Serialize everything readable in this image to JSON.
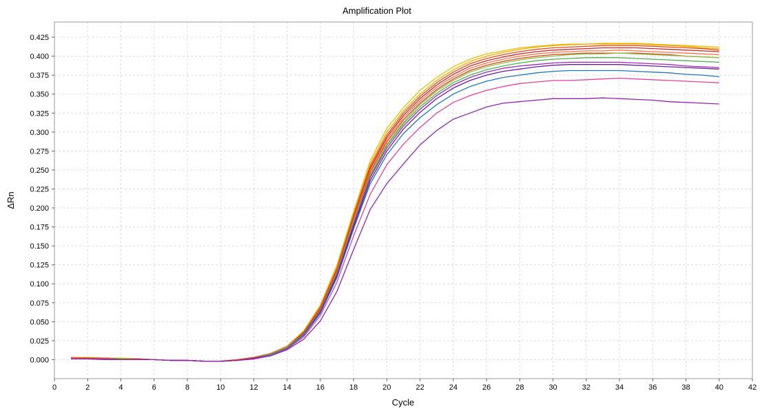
{
  "chart_data": {
    "type": "line",
    "title": "Amplification Plot",
    "xlabel": "Cycle",
    "ylabel": "ΔRn",
    "xlim": [
      0,
      42
    ],
    "ylim": [
      -0.025,
      0.445
    ],
    "x_ticks": [
      0,
      2,
      4,
      6,
      8,
      10,
      12,
      14,
      16,
      18,
      20,
      22,
      24,
      26,
      28,
      30,
      32,
      34,
      36,
      38,
      40,
      42
    ],
    "y_ticks": [
      0.0,
      0.025,
      0.05,
      0.075,
      0.1,
      0.125,
      0.15,
      0.175,
      0.2,
      0.225,
      0.25,
      0.275,
      0.3,
      0.325,
      0.35,
      0.375,
      0.4,
      0.425
    ],
    "grid": true,
    "legend": "none",
    "x": [
      1,
      2,
      3,
      4,
      5,
      6,
      7,
      8,
      9,
      10,
      11,
      12,
      13,
      14,
      15,
      16,
      17,
      18,
      19,
      20,
      21,
      22,
      23,
      24,
      25,
      26,
      27,
      28,
      29,
      30,
      31,
      32,
      33,
      34,
      35,
      36,
      37,
      38,
      39,
      40
    ],
    "series": [
      {
        "color": "#e6c200",
        "values": [
          0.003,
          0.003,
          0.002,
          0.002,
          0.001,
          0.0,
          -0.001,
          -0.001,
          -0.002,
          -0.002,
          0.0,
          0.003,
          0.008,
          0.018,
          0.038,
          0.072,
          0.125,
          0.195,
          0.262,
          0.305,
          0.332,
          0.355,
          0.372,
          0.386,
          0.396,
          0.403,
          0.407,
          0.411,
          0.413,
          0.415,
          0.416,
          0.416,
          0.417,
          0.417,
          0.417,
          0.416,
          0.415,
          0.414,
          0.413,
          0.412
        ]
      },
      {
        "color": "#f2a900",
        "values": [
          0.002,
          0.003,
          0.002,
          0.001,
          0.001,
          0.0,
          -0.001,
          -0.001,
          -0.002,
          -0.002,
          0.0,
          0.003,
          0.008,
          0.018,
          0.037,
          0.07,
          0.122,
          0.192,
          0.258,
          0.3,
          0.328,
          0.35,
          0.368,
          0.382,
          0.393,
          0.4,
          0.405,
          0.409,
          0.412,
          0.414,
          0.415,
          0.416,
          0.416,
          0.416,
          0.416,
          0.415,
          0.414,
          0.413,
          0.411,
          0.41
        ]
      },
      {
        "color": "#e64a19",
        "values": [
          0.003,
          0.002,
          0.002,
          0.001,
          0.001,
          0.0,
          -0.001,
          -0.001,
          -0.002,
          -0.002,
          0.0,
          0.003,
          0.008,
          0.017,
          0.036,
          0.069,
          0.12,
          0.19,
          0.255,
          0.296,
          0.325,
          0.347,
          0.365,
          0.379,
          0.39,
          0.397,
          0.402,
          0.406,
          0.409,
          0.411,
          0.412,
          0.413,
          0.414,
          0.414,
          0.414,
          0.413,
          0.412,
          0.411,
          0.41,
          0.408
        ]
      },
      {
        "color": "#c62828",
        "values": [
          0.002,
          0.002,
          0.002,
          0.001,
          0.001,
          0.0,
          -0.001,
          -0.001,
          -0.002,
          -0.002,
          -0.001,
          0.002,
          0.007,
          0.017,
          0.036,
          0.068,
          0.118,
          0.188,
          0.252,
          0.293,
          0.322,
          0.344,
          0.362,
          0.376,
          0.387,
          0.394,
          0.399,
          0.403,
          0.406,
          0.408,
          0.409,
          0.41,
          0.411,
          0.411,
          0.411,
          0.41,
          0.409,
          0.408,
          0.407,
          0.406
        ]
      },
      {
        "color": "#ff7043",
        "values": [
          0.002,
          0.002,
          0.001,
          0.001,
          0.0,
          0.0,
          -0.001,
          -0.001,
          -0.002,
          -0.002,
          -0.001,
          0.002,
          0.007,
          0.017,
          0.035,
          0.067,
          0.117,
          0.186,
          0.25,
          0.29,
          0.319,
          0.341,
          0.359,
          0.373,
          0.384,
          0.391,
          0.396,
          0.4,
          0.403,
          0.405,
          0.406,
          0.407,
          0.407,
          0.408,
          0.407,
          0.406,
          0.405,
          0.404,
          0.403,
          0.402
        ]
      },
      {
        "color": "#d84315",
        "values": [
          0.001,
          0.002,
          0.002,
          0.001,
          0.001,
          0.0,
          -0.001,
          -0.001,
          -0.002,
          -0.002,
          -0.001,
          0.002,
          0.007,
          0.016,
          0.035,
          0.066,
          0.116,
          0.184,
          0.247,
          0.287,
          0.316,
          0.338,
          0.356,
          0.37,
          0.381,
          0.388,
          0.393,
          0.397,
          0.4,
          0.402,
          0.403,
          0.404,
          0.404,
          0.404,
          0.404,
          0.403,
          0.402,
          0.4,
          0.399,
          0.398
        ]
      },
      {
        "color": "#8bc34a",
        "values": [
          0.001,
          0.001,
          0.001,
          0.001,
          0.0,
          0.0,
          -0.001,
          -0.001,
          -0.002,
          -0.002,
          -0.001,
          0.002,
          0.007,
          0.016,
          0.034,
          0.065,
          0.114,
          0.182,
          0.244,
          0.284,
          0.313,
          0.336,
          0.354,
          0.368,
          0.379,
          0.386,
          0.391,
          0.395,
          0.398,
          0.4,
          0.402,
          0.403,
          0.403,
          0.404,
          0.403,
          0.402,
          0.401,
          0.4,
          0.399,
          0.398
        ]
      },
      {
        "color": "#4caf50",
        "values": [
          0.001,
          0.001,
          0.001,
          0.001,
          0.0,
          0.0,
          -0.001,
          -0.001,
          -0.002,
          -0.002,
          -0.001,
          0.002,
          0.006,
          0.016,
          0.034,
          0.065,
          0.113,
          0.18,
          0.242,
          0.282,
          0.311,
          0.333,
          0.351,
          0.365,
          0.375,
          0.382,
          0.387,
          0.391,
          0.394,
          0.396,
          0.397,
          0.398,
          0.398,
          0.398,
          0.397,
          0.396,
          0.395,
          0.394,
          0.393,
          0.392
        ]
      },
      {
        "color": "#9c27b0",
        "values": [
          0.001,
          0.001,
          0.001,
          0.0,
          0.0,
          0.0,
          -0.001,
          -0.001,
          -0.002,
          -0.002,
          -0.001,
          0.002,
          0.006,
          0.015,
          0.033,
          0.064,
          0.112,
          0.178,
          0.24,
          0.279,
          0.308,
          0.33,
          0.348,
          0.362,
          0.372,
          0.379,
          0.384,
          0.387,
          0.389,
          0.391,
          0.392,
          0.392,
          0.392,
          0.392,
          0.391,
          0.39,
          0.389,
          0.387,
          0.386,
          0.385
        ]
      },
      {
        "color": "#6a1b9a",
        "values": [
          0.001,
          0.001,
          0.001,
          0.0,
          0.0,
          0.0,
          -0.001,
          -0.001,
          -0.002,
          -0.002,
          -0.001,
          0.001,
          0.006,
          0.015,
          0.032,
          0.062,
          0.11,
          0.175,
          0.236,
          0.275,
          0.304,
          0.326,
          0.344,
          0.358,
          0.368,
          0.375,
          0.38,
          0.383,
          0.386,
          0.388,
          0.389,
          0.389,
          0.389,
          0.389,
          0.388,
          0.387,
          0.386,
          0.385,
          0.384,
          0.383
        ]
      },
      {
        "color": "#1f77b4",
        "values": [
          0.001,
          0.001,
          0.001,
          0.0,
          0.0,
          0.0,
          -0.001,
          -0.001,
          -0.002,
          -0.002,
          -0.001,
          0.001,
          0.006,
          0.015,
          0.032,
          0.061,
          0.108,
          0.172,
          0.232,
          0.27,
          0.298,
          0.319,
          0.336,
          0.35,
          0.36,
          0.367,
          0.372,
          0.375,
          0.378,
          0.38,
          0.381,
          0.381,
          0.381,
          0.381,
          0.38,
          0.379,
          0.378,
          0.376,
          0.375,
          0.373
        ]
      },
      {
        "color": "#e040a0",
        "values": [
          0.001,
          0.001,
          0.001,
          0.0,
          0.0,
          0.0,
          -0.001,
          -0.001,
          -0.002,
          -0.002,
          -0.001,
          0.001,
          0.005,
          0.014,
          0.03,
          0.058,
          0.102,
          0.163,
          0.218,
          0.257,
          0.284,
          0.306,
          0.325,
          0.339,
          0.348,
          0.355,
          0.36,
          0.364,
          0.366,
          0.368,
          0.368,
          0.369,
          0.37,
          0.371,
          0.37,
          0.369,
          0.368,
          0.367,
          0.366,
          0.365
        ]
      },
      {
        "color": "#8e24aa",
        "values": [
          0.001,
          0.001,
          0.0,
          0.0,
          0.0,
          0.0,
          -0.001,
          -0.001,
          -0.002,
          -0.002,
          -0.001,
          0.001,
          0.005,
          0.013,
          0.027,
          0.051,
          0.09,
          0.145,
          0.198,
          0.232,
          0.258,
          0.283,
          0.302,
          0.317,
          0.325,
          0.333,
          0.338,
          0.34,
          0.342,
          0.344,
          0.344,
          0.344,
          0.345,
          0.344,
          0.343,
          0.342,
          0.34,
          0.339,
          0.338,
          0.337
        ]
      }
    ]
  }
}
